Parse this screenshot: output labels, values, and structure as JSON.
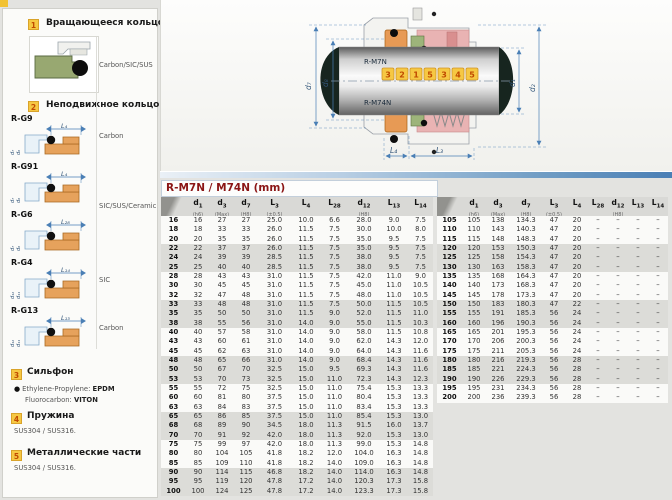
{
  "sidebar": {
    "sections": {
      "rotating": {
        "num": "1",
        "title": "Вращающееся кольцо",
        "material": "Carbon/SIC/SUS"
      },
      "stationary": {
        "num": "2",
        "title": "Неподвижное кольцо"
      },
      "bellows": {
        "num": "3",
        "title": "Сильфон",
        "rows": [
          {
            "label": "Ethylene-Propylene:",
            "value": "EPDM",
            "bullet": "●"
          },
          {
            "label": "Fluorocarbon:",
            "value": "VITON",
            "bullet": ""
          }
        ]
      },
      "spring": {
        "num": "4",
        "title": "Пружина",
        "material": "SUS304 / SUS316."
      },
      "metal": {
        "num": "5",
        "title": "Металлические части",
        "material": "SUS304 / SUS316."
      }
    },
    "ring_variants": [
      {
        "code": "R-G9",
        "dim": "L₄",
        "dims_left": [
          "d₇",
          "d₈"
        ],
        "material": "Carbon",
        "mat_pos": "mid"
      },
      {
        "code": "R-G91",
        "dim": "L₄",
        "dims_left": [
          "d₇",
          "d₈"
        ],
        "material": "SIC/SUS/Ceramic",
        "mat_pos": "bottom"
      },
      {
        "code": "R-G6",
        "dim": "L₂₈",
        "dims_left": [
          "d₇",
          "d₈"
        ],
        "material": "",
        "mat_pos": "mid"
      },
      {
        "code": "R-G4",
        "dim": "L₁₄",
        "dims_left": [
          "d₁₂",
          "d₁₁"
        ],
        "material": "SIC",
        "mat_pos": "mid"
      },
      {
        "code": "R-G13",
        "dim": "L₁₃",
        "dims_left": [
          "d₁₂",
          "d₁₁"
        ],
        "material": "Carbon",
        "mat_pos": "mid"
      }
    ]
  },
  "diagram": {
    "shaft_labels": [
      "R-M7N",
      "R-M74N"
    ],
    "callouts": [
      "3",
      "2",
      "1",
      "5",
      "3",
      "4",
      "5"
    ],
    "dims_left": [
      "d₇",
      "d₈"
    ],
    "dims_right": [
      "d₁",
      "d₂"
    ],
    "dims_bottom": [
      "L₄",
      "L₃"
    ]
  },
  "table": {
    "title": "R-M7N / M74N (mm)",
    "dash": "–",
    "columns": [
      {
        "base": "d",
        "sub": "1",
        "note": "(h6)"
      },
      {
        "base": "d",
        "sub": "3",
        "note": "(Max)"
      },
      {
        "base": "d",
        "sub": "7",
        "note": "(H8)"
      },
      {
        "base": "L",
        "sub": "3",
        "note": "(±0.5)"
      },
      {
        "base": "L",
        "sub": "4",
        "note": ""
      },
      {
        "base": "L",
        "sub": "28",
        "note": ""
      },
      {
        "base": "d",
        "sub": "12",
        "note": "(H8)"
      },
      {
        "base": "L",
        "sub": "13",
        "note": ""
      },
      {
        "base": "L",
        "sub": "14",
        "note": ""
      }
    ],
    "left_rows": [
      [
        "16",
        "16",
        "27",
        "27",
        "25.0",
        "10.0",
        "6.6",
        "28.0",
        "9.0",
        "7.5"
      ],
      [
        "18",
        "18",
        "33",
        "33",
        "26.0",
        "11.5",
        "7.5",
        "30.0",
        "10.0",
        "8.0"
      ],
      [
        "20",
        "20",
        "35",
        "35",
        "26.0",
        "11.5",
        "7.5",
        "35.0",
        "9.5",
        "7.5"
      ],
      [
        "22",
        "22",
        "37",
        "37",
        "26.0",
        "11.5",
        "7.5",
        "35.0",
        "9.5",
        "7.5"
      ],
      [
        "24",
        "24",
        "39",
        "39",
        "28.5",
        "11.5",
        "7.5",
        "38.0",
        "9.5",
        "7.5"
      ],
      [
        "25",
        "25",
        "40",
        "40",
        "28.5",
        "11.5",
        "7.5",
        "38.0",
        "9.5",
        "7.5"
      ],
      [
        "28",
        "28",
        "43",
        "43",
        "31.0",
        "11.5",
        "7.5",
        "42.0",
        "11.0",
        "9.0"
      ],
      [
        "30",
        "30",
        "45",
        "45",
        "31.0",
        "11.5",
        "7.5",
        "45.0",
        "11.0",
        "10.5"
      ],
      [
        "32",
        "32",
        "47",
        "48",
        "31.0",
        "11.5",
        "7.5",
        "48.0",
        "11.0",
        "10.5"
      ],
      [
        "33",
        "33",
        "48",
        "48",
        "31.0",
        "11.5",
        "7.5",
        "50.0",
        "11.5",
        "10.5"
      ],
      [
        "35",
        "35",
        "50",
        "50",
        "31.0",
        "11.5",
        "9.0",
        "52.0",
        "11.5",
        "11.0"
      ],
      [
        "38",
        "38",
        "55",
        "56",
        "31.0",
        "14.0",
        "9.0",
        "55.0",
        "11.5",
        "10.3"
      ],
      [
        "40",
        "40",
        "57",
        "58",
        "31.0",
        "14.0",
        "9.0",
        "58.0",
        "11.5",
        "10.8"
      ],
      [
        "43",
        "43",
        "60",
        "61",
        "31.0",
        "14.0",
        "9.0",
        "62.0",
        "14.3",
        "12.0"
      ],
      [
        "45",
        "45",
        "62",
        "63",
        "31.0",
        "14.0",
        "9.0",
        "64.0",
        "14.3",
        "11.6"
      ],
      [
        "48",
        "48",
        "65",
        "66",
        "31.0",
        "14.0",
        "9.0",
        "68.4",
        "14.3",
        "11.6"
      ],
      [
        "50",
        "50",
        "67",
        "70",
        "32.5",
        "15.0",
        "9.5",
        "69.3",
        "14.3",
        "11.6"
      ],
      [
        "53",
        "53",
        "70",
        "73",
        "32.5",
        "15.0",
        "11.0",
        "72.3",
        "14.3",
        "12.3"
      ],
      [
        "55",
        "55",
        "72",
        "75",
        "32.5",
        "15.0",
        "11.0",
        "75.4",
        "15.3",
        "13.3"
      ],
      [
        "60",
        "60",
        "81",
        "80",
        "37.5",
        "15.0",
        "11.0",
        "80.4",
        "15.3",
        "13.3"
      ],
      [
        "63",
        "63",
        "84",
        "83",
        "37.5",
        "15.0",
        "11.0",
        "83.4",
        "15.3",
        "13.3"
      ],
      [
        "65",
        "65",
        "86",
        "85",
        "37.5",
        "15.0",
        "11.0",
        "85.4",
        "15.3",
        "13.0"
      ],
      [
        "68",
        "68",
        "89",
        "90",
        "34.5",
        "18.0",
        "11.3",
        "91.5",
        "16.0",
        "13.7"
      ],
      [
        "70",
        "70",
        "91",
        "92",
        "42.0",
        "18.0",
        "11.3",
        "92.0",
        "15.3",
        "13.0"
      ],
      [
        "75",
        "75",
        "99",
        "97",
        "42.0",
        "18.0",
        "11.3",
        "99.0",
        "15.3",
        "14.8"
      ],
      [
        "80",
        "80",
        "104",
        "105",
        "41.8",
        "18.2",
        "12.0",
        "104.0",
        "16.3",
        "14.8"
      ],
      [
        "85",
        "85",
        "109",
        "110",
        "41.8",
        "18.2",
        "14.0",
        "109.0",
        "16.3",
        "14.8"
      ],
      [
        "90",
        "90",
        "114",
        "115",
        "46.8",
        "18.2",
        "14.0",
        "114.0",
        "16.3",
        "14.8"
      ],
      [
        "95",
        "95",
        "119",
        "120",
        "47.8",
        "17.2",
        "14.0",
        "120.3",
        "17.3",
        "15.8"
      ],
      [
        "100",
        "100",
        "124",
        "125",
        "47.8",
        "17.2",
        "14.0",
        "123.3",
        "17.3",
        "15.8"
      ]
    ],
    "right_rows": [
      [
        "105",
        "105",
        "138",
        "134.3",
        "47",
        "20"
      ],
      [
        "110",
        "110",
        "143",
        "140.3",
        "47",
        "20"
      ],
      [
        "115",
        "115",
        "148",
        "148.3",
        "47",
        "20"
      ],
      [
        "120",
        "120",
        "153",
        "150.3",
        "47",
        "20"
      ],
      [
        "125",
        "125",
        "158",
        "154.3",
        "47",
        "20"
      ],
      [
        "130",
        "130",
        "163",
        "158.3",
        "47",
        "20"
      ],
      [
        "135",
        "135",
        "168",
        "164.3",
        "47",
        "20"
      ],
      [
        "140",
        "140",
        "173",
        "168.3",
        "47",
        "20"
      ],
      [
        "145",
        "145",
        "178",
        "173.3",
        "47",
        "20"
      ],
      [
        "150",
        "150",
        "183",
        "180.3",
        "47",
        "22"
      ],
      [
        "155",
        "155",
        "191",
        "185.3",
        "56",
        "24"
      ],
      [
        "160",
        "160",
        "196",
        "190.3",
        "56",
        "24"
      ],
      [
        "165",
        "165",
        "201",
        "195.3",
        "56",
        "24"
      ],
      [
        "170",
        "170",
        "206",
        "200.3",
        "56",
        "24"
      ],
      [
        "175",
        "175",
        "211",
        "205.3",
        "56",
        "24"
      ],
      [
        "180",
        "180",
        "216",
        "219.3",
        "56",
        "28"
      ],
      [
        "185",
        "185",
        "221",
        "224.3",
        "56",
        "28"
      ],
      [
        "190",
        "190",
        "226",
        "229.3",
        "56",
        "28"
      ],
      [
        "195",
        "195",
        "231",
        "234.3",
        "56",
        "28"
      ],
      [
        "200",
        "200",
        "236",
        "239.3",
        "56",
        "28"
      ]
    ]
  },
  "colors": {
    "accent_yellow": "#f6c843",
    "callout_number": "#c04a00",
    "title_red": "#8b1515",
    "dim_blue": "#4a7fb5"
  }
}
